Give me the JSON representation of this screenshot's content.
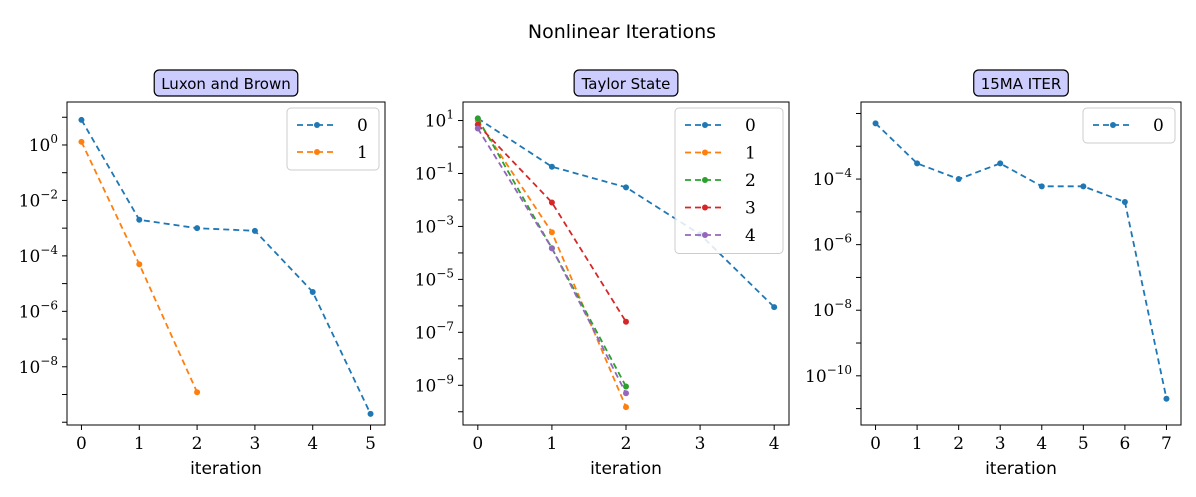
{
  "figure": {
    "title": "Nonlinear Iterations"
  },
  "colors": [
    "#1f77b4",
    "#ff7f0e",
    "#2ca02c",
    "#d62728",
    "#9467bd"
  ],
  "title_box_color": "#ccccff",
  "chart_data": [
    {
      "type": "line",
      "title": "Luxon and Brown",
      "xlabel": "iteration",
      "ylabel": "",
      "yscale": "log",
      "xlim": [
        -0.25,
        5.25
      ],
      "ylim_log10": [
        -10.1,
        1.55
      ],
      "xticks": [
        0,
        1,
        2,
        3,
        4,
        5
      ],
      "yticks_exp": [
        0,
        -2,
        -4,
        -6,
        -8
      ],
      "legend_loc": "upper right",
      "series": [
        {
          "name": "0",
          "x": [
            0,
            1,
            2,
            3,
            4,
            5
          ],
          "y": [
            8,
            0.002,
            0.001,
            0.0008,
            5e-06,
            2e-10
          ]
        },
        {
          "name": "1",
          "x": [
            0,
            1,
            2
          ],
          "y": [
            1.3,
            5e-05,
            1.2e-09
          ]
        }
      ]
    },
    {
      "type": "line",
      "title": "Taylor State",
      "xlabel": "iteration",
      "ylabel": "",
      "yscale": "log",
      "xlim": [
        -0.2,
        4.2
      ],
      "ylim_log10": [
        -10.5,
        1.7
      ],
      "xticks": [
        0,
        1,
        2,
        3,
        4
      ],
      "yticks_exp": [
        1,
        -1,
        -3,
        -5,
        -7,
        -9
      ],
      "legend_loc": "upper right",
      "series": [
        {
          "name": "0",
          "x": [
            0,
            1,
            2,
            3,
            4
          ],
          "y": [
            12,
            0.18,
            0.03,
            0.0005,
            9e-07
          ]
        },
        {
          "name": "1",
          "x": [
            0,
            1,
            2
          ],
          "y": [
            10,
            0.0006,
            1.5e-10
          ]
        },
        {
          "name": "2",
          "x": [
            0,
            1,
            2
          ],
          "y": [
            12,
            0.00015,
            9e-10
          ]
        },
        {
          "name": "3",
          "x": [
            0,
            1,
            2
          ],
          "y": [
            7,
            0.008,
            2.5e-07
          ]
        },
        {
          "name": "4",
          "x": [
            0,
            1,
            2
          ],
          "y": [
            5,
            0.00015,
            5e-10
          ]
        }
      ]
    },
    {
      "type": "line",
      "title": "15MA ITER",
      "xlabel": "iteration",
      "ylabel": "",
      "yscale": "log",
      "xlim": [
        -0.35,
        7.35
      ],
      "ylim_log10": [
        -11.5,
        -1.65
      ],
      "xticks": [
        0,
        1,
        2,
        3,
        4,
        5,
        6,
        7
      ],
      "yticks_exp": [
        -4,
        -6,
        -8,
        -10
      ],
      "legend_loc": "upper right",
      "series": [
        {
          "name": "0",
          "x": [
            0,
            1,
            2,
            3,
            4,
            5,
            6,
            7
          ],
          "y": [
            0.005,
            0.0003,
            0.0001,
            0.0003,
            6e-05,
            6e-05,
            2e-05,
            2e-11
          ]
        }
      ]
    }
  ]
}
